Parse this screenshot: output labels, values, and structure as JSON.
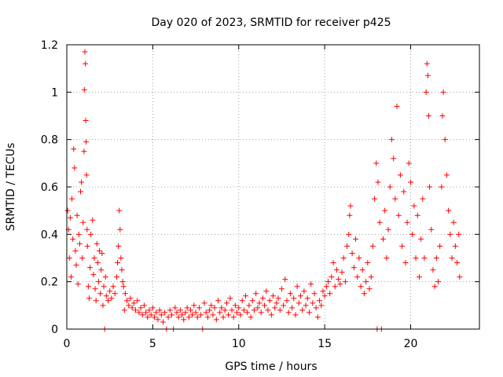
{
  "chart_data": {
    "type": "scatter",
    "title": "Day 020 of 2023, SRMTID for receiver p425",
    "xlabel": "GPS time / hours",
    "ylabel": "SRMTID / TECUs",
    "xlim": [
      0,
      24
    ],
    "ylim": [
      0,
      1.2
    ],
    "x_ticks": [
      0,
      5,
      10,
      15,
      20
    ],
    "x_tick_labels": [
      "0",
      "5",
      "10",
      "15",
      "20"
    ],
    "y_ticks": [
      0,
      0.2,
      0.4,
      0.6,
      0.8,
      1.0,
      1.2
    ],
    "y_tick_labels": [
      "0",
      "0.2",
      "0.4",
      "0.6",
      "0.8",
      "1",
      "1.2"
    ],
    "grid": true,
    "marker": "+",
    "color": "#ff0000",
    "series": [
      {
        "name": "SRMTID",
        "points": [
          [
            0.05,
            0.5
          ],
          [
            0.1,
            0.42
          ],
          [
            0.15,
            0.3
          ],
          [
            0.2,
            0.47
          ],
          [
            0.25,
            0.22
          ],
          [
            0.3,
            0.55
          ],
          [
            0.35,
            0.38
          ],
          [
            0.4,
            0.76
          ],
          [
            0.45,
            0.68
          ],
          [
            0.5,
            0.33
          ],
          [
            0.55,
            0.27
          ],
          [
            0.6,
            0.48
          ],
          [
            0.65,
            0.19
          ],
          [
            0.7,
            0.4
          ],
          [
            0.75,
            0.36
          ],
          [
            0.8,
            0.58
          ],
          [
            0.85,
            0.62
          ],
          [
            0.9,
            0.3
          ],
          [
            0.95,
            0.45
          ],
          [
            1.0,
            0.75
          ],
          [
            1.02,
            1.01
          ],
          [
            1.05,
            1.17
          ],
          [
            1.08,
            1.12
          ],
          [
            1.1,
            0.88
          ],
          [
            1.12,
            0.79
          ],
          [
            1.15,
            0.65
          ],
          [
            1.18,
            0.42
          ],
          [
            1.2,
            0.35
          ],
          [
            1.25,
            0.18
          ],
          [
            1.3,
            0.13
          ],
          [
            1.35,
            0.26
          ],
          [
            1.4,
            0.4
          ],
          [
            1.5,
            0.46
          ],
          [
            1.55,
            0.23
          ],
          [
            1.6,
            0.3
          ],
          [
            1.65,
            0.17
          ],
          [
            1.7,
            0.12
          ],
          [
            1.75,
            0.36
          ],
          [
            1.8,
            0.28
          ],
          [
            1.85,
            0.2
          ],
          [
            1.9,
            0.33
          ],
          [
            1.95,
            0.15
          ],
          [
            2.0,
            0.25
          ],
          [
            2.05,
            0.32
          ],
          [
            2.1,
            0.1
          ],
          [
            2.15,
            0.18
          ],
          [
            2.2,
            0.0
          ],
          [
            2.25,
            0.22
          ],
          [
            2.3,
            0.14
          ],
          [
            2.4,
            0.12
          ],
          [
            2.5,
            0.16
          ],
          [
            2.6,
            0.13
          ],
          [
            2.7,
            0.18
          ],
          [
            2.8,
            0.15
          ],
          [
            2.9,
            0.22
          ],
          [
            2.95,
            0.28
          ],
          [
            3.0,
            0.35
          ],
          [
            3.05,
            0.5
          ],
          [
            3.1,
            0.42
          ],
          [
            3.15,
            0.3
          ],
          [
            3.2,
            0.25
          ],
          [
            3.25,
            0.2
          ],
          [
            3.3,
            0.18
          ],
          [
            3.35,
            0.08
          ],
          [
            3.4,
            0.15
          ],
          [
            3.5,
            0.12
          ],
          [
            3.6,
            0.1
          ],
          [
            3.7,
            0.13
          ],
          [
            3.8,
            0.09
          ],
          [
            3.9,
            0.11
          ],
          [
            4.0,
            0.08
          ],
          [
            4.1,
            0.12
          ],
          [
            4.2,
            0.07
          ],
          [
            4.3,
            0.09
          ],
          [
            4.4,
            0.06
          ],
          [
            4.5,
            0.1
          ],
          [
            4.6,
            0.07
          ],
          [
            4.7,
            0.05
          ],
          [
            4.8,
            0.08
          ],
          [
            4.9,
            0.06
          ],
          [
            5.0,
            0.09
          ],
          [
            5.1,
            0.05
          ],
          [
            5.2,
            0.07
          ],
          [
            5.3,
            0.04
          ],
          [
            5.4,
            0.08
          ],
          [
            5.5,
            0.06
          ],
          [
            5.6,
            0.03
          ],
          [
            5.7,
            0.07
          ],
          [
            5.8,
            0.0
          ],
          [
            5.9,
            0.05
          ],
          [
            6.0,
            0.08
          ],
          [
            6.1,
            0.06
          ],
          [
            6.2,
            0.0
          ],
          [
            6.3,
            0.09
          ],
          [
            6.4,
            0.07
          ],
          [
            6.5,
            0.05
          ],
          [
            6.6,
            0.08
          ],
          [
            6.7,
            0.06
          ],
          [
            6.8,
            0.04
          ],
          [
            6.9,
            0.07
          ],
          [
            7.0,
            0.09
          ],
          [
            7.1,
            0.05
          ],
          [
            7.2,
            0.08
          ],
          [
            7.3,
            0.06
          ],
          [
            7.4,
            0.1
          ],
          [
            7.5,
            0.07
          ],
          [
            7.6,
            0.05
          ],
          [
            7.7,
            0.09
          ],
          [
            7.8,
            0.06
          ],
          [
            7.9,
            0.0
          ],
          [
            8.0,
            0.11
          ],
          [
            8.1,
            0.07
          ],
          [
            8.2,
            0.05
          ],
          [
            8.3,
            0.08
          ],
          [
            8.4,
            0.1
          ],
          [
            8.5,
            0.06
          ],
          [
            8.6,
            0.09
          ],
          [
            8.7,
            0.04
          ],
          [
            8.8,
            0.12
          ],
          [
            8.9,
            0.07
          ],
          [
            9.0,
            0.09
          ],
          [
            9.1,
            0.05
          ],
          [
            9.2,
            0.08
          ],
          [
            9.3,
            0.11
          ],
          [
            9.4,
            0.06
          ],
          [
            9.5,
            0.13
          ],
          [
            9.6,
            0.08
          ],
          [
            9.7,
            0.05
          ],
          [
            9.8,
            0.1
          ],
          [
            9.9,
            0.07
          ],
          [
            10.0,
            0.09
          ],
          [
            10.1,
            0.06
          ],
          [
            10.2,
            0.12
          ],
          [
            10.3,
            0.08
          ],
          [
            10.4,
            0.14
          ],
          [
            10.5,
            0.07
          ],
          [
            10.6,
            0.1
          ],
          [
            10.7,
            0.05
          ],
          [
            10.8,
            0.12
          ],
          [
            10.9,
            0.08
          ],
          [
            11.0,
            0.15
          ],
          [
            11.1,
            0.09
          ],
          [
            11.2,
            0.11
          ],
          [
            11.3,
            0.07
          ],
          [
            11.4,
            0.13
          ],
          [
            11.5,
            0.1
          ],
          [
            11.6,
            0.16
          ],
          [
            11.7,
            0.08
          ],
          [
            11.8,
            0.12
          ],
          [
            11.9,
            0.06
          ],
          [
            12.0,
            0.14
          ],
          [
            12.1,
            0.09
          ],
          [
            12.2,
            0.11
          ],
          [
            12.3,
            0.13
          ],
          [
            12.4,
            0.08
          ],
          [
            12.5,
            0.17
          ],
          [
            12.6,
            0.1
          ],
          [
            12.7,
            0.21
          ],
          [
            12.8,
            0.12
          ],
          [
            12.9,
            0.07
          ],
          [
            13.0,
            0.15
          ],
          [
            13.1,
            0.09
          ],
          [
            13.2,
            0.13
          ],
          [
            13.3,
            0.06
          ],
          [
            13.4,
            0.18
          ],
          [
            13.5,
            0.11
          ],
          [
            13.6,
            0.14
          ],
          [
            13.7,
            0.08
          ],
          [
            13.8,
            0.16
          ],
          [
            13.9,
            0.1
          ],
          [
            14.0,
            0.13
          ],
          [
            14.1,
            0.07
          ],
          [
            14.2,
            0.19
          ],
          [
            14.3,
            0.11
          ],
          [
            14.4,
            0.15
          ],
          [
            14.5,
            0.09
          ],
          [
            14.6,
            0.05
          ],
          [
            14.7,
            0.12
          ],
          [
            14.8,
            0.1
          ],
          [
            14.9,
            0.16
          ],
          [
            15.0,
            0.14
          ],
          [
            15.1,
            0.18
          ],
          [
            15.2,
            0.2
          ],
          [
            15.3,
            0.15
          ],
          [
            15.4,
            0.22
          ],
          [
            15.5,
            0.28
          ],
          [
            15.6,
            0.18
          ],
          [
            15.7,
            0.25
          ],
          [
            15.8,
            0.21
          ],
          [
            15.9,
            0.19
          ],
          [
            16.0,
            0.24
          ],
          [
            16.1,
            0.3
          ],
          [
            16.2,
            0.2
          ],
          [
            16.3,
            0.35
          ],
          [
            16.4,
            0.4
          ],
          [
            16.45,
            0.48
          ],
          [
            16.5,
            0.52
          ],
          [
            16.6,
            0.32
          ],
          [
            16.7,
            0.26
          ],
          [
            16.8,
            0.38
          ],
          [
            16.9,
            0.22
          ],
          [
            17.0,
            0.3
          ],
          [
            17.1,
            0.18
          ],
          [
            17.2,
            0.25
          ],
          [
            17.3,
            0.15
          ],
          [
            17.4,
            0.2
          ],
          [
            17.5,
            0.28
          ],
          [
            17.6,
            0.17
          ],
          [
            17.7,
            0.22
          ],
          [
            17.8,
            0.35
          ],
          [
            17.9,
            0.55
          ],
          [
            18.0,
            0.7
          ],
          [
            18.05,
            0.0
          ],
          [
            18.1,
            0.62
          ],
          [
            18.2,
            0.45
          ],
          [
            18.3,
            0.0
          ],
          [
            18.4,
            0.38
          ],
          [
            18.5,
            0.5
          ],
          [
            18.6,
            0.3
          ],
          [
            18.7,
            0.42
          ],
          [
            18.8,
            0.6
          ],
          [
            18.9,
            0.8
          ],
          [
            19.0,
            0.72
          ],
          [
            19.1,
            0.55
          ],
          [
            19.2,
            0.94
          ],
          [
            19.3,
            0.48
          ],
          [
            19.4,
            0.65
          ],
          [
            19.5,
            0.35
          ],
          [
            19.6,
            0.58
          ],
          [
            19.7,
            0.28
          ],
          [
            19.8,
            0.45
          ],
          [
            19.9,
            0.7
          ],
          [
            20.0,
            0.62
          ],
          [
            20.1,
            0.4
          ],
          [
            20.2,
            0.52
          ],
          [
            20.3,
            0.3
          ],
          [
            20.4,
            0.48
          ],
          [
            20.5,
            0.22
          ],
          [
            20.6,
            0.38
          ],
          [
            20.7,
            0.55
          ],
          [
            20.8,
            0.3
          ],
          [
            20.9,
            1.0
          ],
          [
            20.95,
            1.12
          ],
          [
            21.0,
            1.07
          ],
          [
            21.05,
            0.9
          ],
          [
            21.1,
            0.6
          ],
          [
            21.2,
            0.42
          ],
          [
            21.3,
            0.25
          ],
          [
            21.4,
            0.18
          ],
          [
            21.5,
            0.3
          ],
          [
            21.6,
            0.2
          ],
          [
            21.7,
            0.35
          ],
          [
            21.8,
            0.6
          ],
          [
            21.85,
            0.9
          ],
          [
            21.9,
            1.0
          ],
          [
            22.0,
            0.8
          ],
          [
            22.1,
            0.65
          ],
          [
            22.2,
            0.5
          ],
          [
            22.3,
            0.4
          ],
          [
            22.4,
            0.3
          ],
          [
            22.5,
            0.45
          ],
          [
            22.6,
            0.35
          ],
          [
            22.7,
            0.28
          ],
          [
            22.8,
            0.4
          ],
          [
            22.85,
            0.22
          ]
        ]
      }
    ]
  }
}
